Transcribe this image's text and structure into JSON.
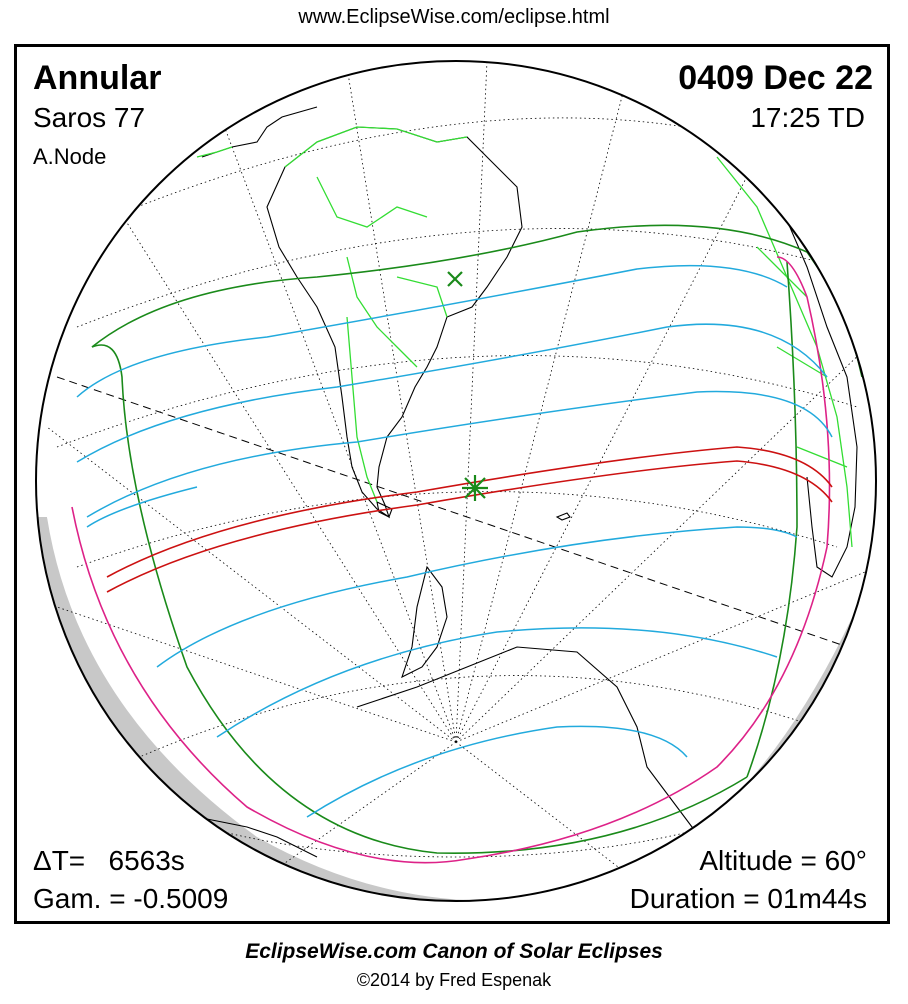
{
  "header": {
    "url": "www.EclipseWise.com/eclipse.html"
  },
  "eclipse": {
    "type": "Annular",
    "date": "0409 Dec 22",
    "saros": "Saros  77",
    "time": "17:25 TD",
    "node": "A.Node",
    "delta_t": "ΔT=   6563s",
    "gamma": "Gam. = -0.5009",
    "altitude": "Altitude = 60°",
    "duration": "Duration = 01m44s"
  },
  "footer": {
    "canon": "EclipseWise.com Canon of Solar Eclipses",
    "copyright": "©2014 by Fred Espenak"
  },
  "map_colors": {
    "globe_outline": "#000000",
    "night_shade": "#c8c8c8",
    "graticule": "#000000",
    "coastline": "#000000",
    "borders": "#33dd33",
    "penumbral_limits": "#1a8a1a",
    "partial_curves": "#22aadd",
    "central_path": "#cc1111",
    "rise_set_curve": "#dd2288",
    "greatest_eclipse_marker": "#1a8a1a",
    "subsolar_marker": "#1a8a1a"
  }
}
